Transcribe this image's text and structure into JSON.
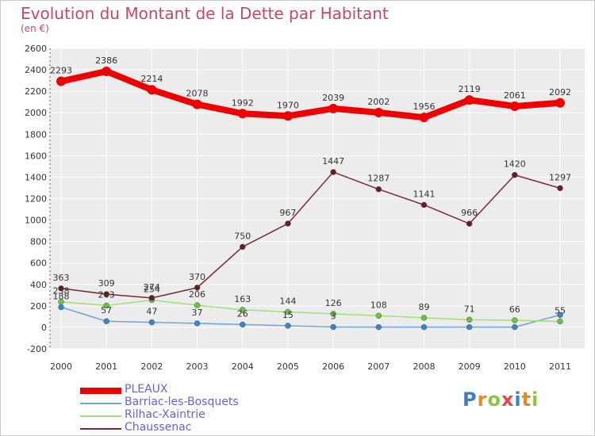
{
  "title": "Evolution du Montant de la Dette par Habitant",
  "subtitle": "(en €)",
  "logo": {
    "text": "Proxiti",
    "letters": [
      {
        "ch": "P",
        "color": "#3e7fc4"
      },
      {
        "ch": "r",
        "color": "#e58a1f"
      },
      {
        "ch": "o",
        "color": "#8cc43e"
      },
      {
        "ch": "x",
        "color": "#e34b4b"
      },
      {
        "ch": "i",
        "color": "#3e7fc4"
      },
      {
        "ch": "t",
        "color": "#e58a1f"
      },
      {
        "ch": "i",
        "color": "#8cc43e"
      }
    ]
  },
  "chart_data": {
    "type": "line",
    "title": "Evolution du Montant de la Dette par Habitant",
    "subtitle": "(en €)",
    "x": [
      "2000",
      "2001",
      "2002",
      "2003",
      "2004",
      "2005",
      "2006",
      "2007",
      "2008",
      "2009",
      "2010",
      "2011"
    ],
    "ylim": [
      -200,
      2600
    ],
    "yticks": [
      -200,
      0,
      200,
      400,
      600,
      800,
      1000,
      1200,
      1400,
      1600,
      1800,
      2000,
      2200,
      2400,
      2600
    ],
    "grid": true,
    "legend_position": "bottom-left",
    "series": [
      {
        "name": "PLEAUX",
        "color": "#ee0000",
        "width": "thick",
        "values": [
          2293,
          2386,
          2214,
          2078,
          1992,
          1970,
          2039,
          2002,
          1956,
          2119,
          2061,
          2092
        ],
        "labels": [
          "2293",
          "2386",
          "2214",
          "2078",
          "1992",
          "1970",
          "2039",
          "2002",
          "1956",
          "2119",
          "2061",
          "2092"
        ]
      },
      {
        "name": "Barriac-les-Bosquets",
        "color": "#6da6d8",
        "marker": "#3a85c9",
        "values": [
          188,
          57,
          47,
          37,
          26,
          15,
          3,
          2,
          2,
          2,
          2,
          116
        ],
        "labels": [
          "188",
          "57",
          "47",
          "37",
          "26",
          "15",
          "3",
          "",
          "",
          "",
          "",
          ""
        ]
      },
      {
        "name": "Rilhac-Xaintrie",
        "color": "#9fe07b",
        "marker": "#6bc23e",
        "values": [
          238,
          203,
          254,
          206,
          163,
          144,
          126,
          108,
          89,
          71,
          66,
          55
        ],
        "labels": [
          "238",
          "203",
          "254",
          "206",
          "163",
          "144",
          "126",
          "108",
          "89",
          "71",
          "66",
          "55"
        ]
      },
      {
        "name": "Chaussenac",
        "color": "#7a2a33",
        "marker": "#6a1c24",
        "values": [
          363,
          309,
          274,
          370,
          750,
          967,
          1447,
          1287,
          1141,
          966,
          1420,
          1297
        ],
        "labels": [
          "363",
          "309",
          "274",
          "370",
          "750",
          "967",
          "1447",
          "1287",
          "1141",
          "966",
          "1420",
          "1297"
        ]
      }
    ]
  }
}
